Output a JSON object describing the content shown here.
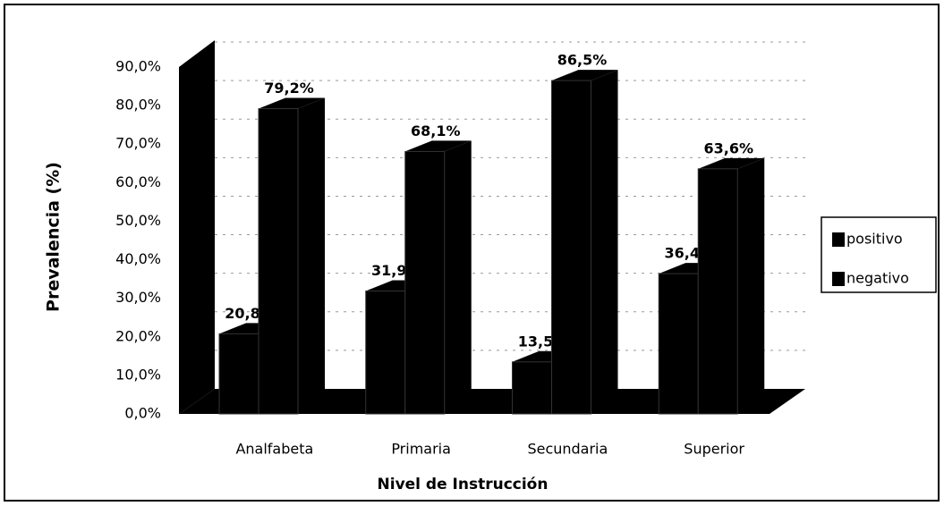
{
  "chart_data": {
    "type": "bar",
    "y_label": "Prevalencia (%)",
    "x_label": "Nivel de Instrucción",
    "categories": [
      "Analfabeta",
      "Primaria",
      "Secundaria",
      "Superior"
    ],
    "series": [
      {
        "name": "positivo",
        "color": "#000000",
        "values": [
          20.8,
          31.9,
          13.5,
          36.4
        ],
        "value_labels": [
          "20,8%",
          "31,9%",
          "13,5%",
          "36,4%"
        ]
      },
      {
        "name": "negativo",
        "color": "#000000",
        "values": [
          79.2,
          68.1,
          86.5,
          63.6
        ],
        "value_labels": [
          "79,2%",
          "68,1%",
          "86,5%",
          "63,6%"
        ]
      }
    ],
    "ylim": [
      0,
      90
    ],
    "yticks": [
      {
        "value": 0,
        "label": "0,0%"
      },
      {
        "value": 10,
        "label": "10,0%"
      },
      {
        "value": 20,
        "label": "20,0%"
      },
      {
        "value": 30,
        "label": "30,0%"
      },
      {
        "value": 40,
        "label": "40,0%"
      },
      {
        "value": 50,
        "label": "50,0%"
      },
      {
        "value": 60,
        "label": "60,0%"
      },
      {
        "value": 70,
        "label": "70,0%"
      },
      {
        "value": 80,
        "label": "80,0%"
      },
      {
        "value": 90,
        "label": "90,0%"
      }
    ],
    "grid": true,
    "legend": "right"
  }
}
